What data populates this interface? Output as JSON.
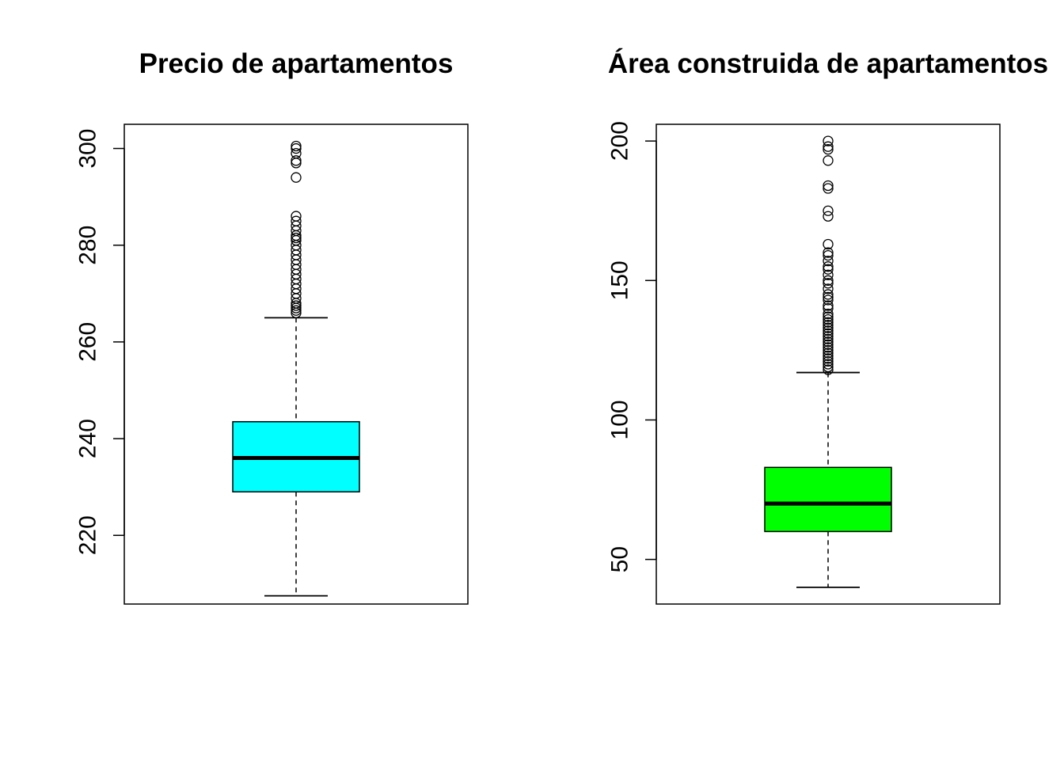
{
  "chart_data": [
    {
      "type": "box",
      "title": "Precio de apartamentos",
      "xlabel": "",
      "ylabel": "",
      "ylim": [
        205.8,
        305.0
      ],
      "yticks": [
        220,
        240,
        260,
        280,
        300
      ],
      "fill_color": "#00FFFF",
      "box": {
        "whisker_low": 207.5,
        "q1": 229.0,
        "median": 236.0,
        "q3": 243.5,
        "whisker_high": 265.0
      },
      "outliers": [
        266,
        266.5,
        267,
        267.5,
        268,
        269,
        270,
        271,
        272,
        273,
        274,
        275,
        276,
        277,
        278,
        279,
        280,
        281,
        281.5,
        282,
        283,
        284,
        285,
        286,
        294,
        297,
        297.5,
        299,
        300,
        300.5
      ]
    },
    {
      "type": "box",
      "title": "Área construida de apartamentos",
      "xlabel": "",
      "ylabel": "",
      "ylim": [
        34.0,
        206.0
      ],
      "yticks": [
        50,
        100,
        150,
        200
      ],
      "fill_color": "#00FF00",
      "box": {
        "whisker_low": 40,
        "q1": 60,
        "median": 70,
        "q3": 83,
        "whisker_high": 117
      },
      "outliers": [
        118,
        119,
        120,
        121,
        122,
        123,
        124,
        125,
        126,
        127,
        128,
        129,
        130,
        131,
        132,
        133,
        134,
        135,
        136,
        137,
        138,
        140,
        141,
        143,
        144,
        145,
        147,
        149,
        150,
        152,
        154,
        155,
        157,
        159,
        160,
        163,
        173,
        175,
        183,
        184,
        193,
        197,
        198,
        200
      ]
    }
  ]
}
